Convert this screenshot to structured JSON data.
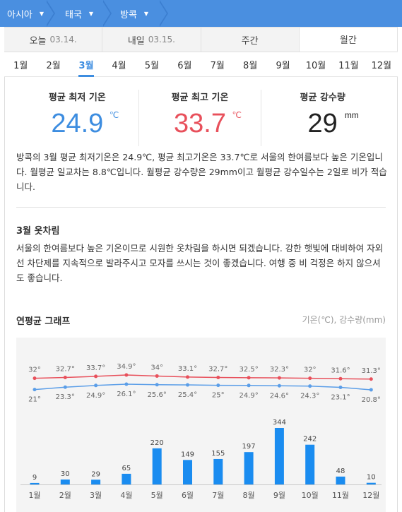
{
  "breadcrumb": [
    {
      "label": "아시아"
    },
    {
      "label": "태국"
    },
    {
      "label": "방콕"
    }
  ],
  "tabs": [
    {
      "label": "오늘",
      "date": "03.14."
    },
    {
      "label": "내일",
      "date": "03.15."
    },
    {
      "label": "주간",
      "date": ""
    },
    {
      "label": "월간",
      "date": ""
    }
  ],
  "active_tab": "월간",
  "months": [
    "1월",
    "2월",
    "3월",
    "4월",
    "5월",
    "6월",
    "7월",
    "8월",
    "9월",
    "10월",
    "11월",
    "12월"
  ],
  "active_month": "3월",
  "stats": {
    "min": {
      "label": "평균 최저 기온",
      "value": "24.9",
      "unit": "℃"
    },
    "max": {
      "label": "평균 최고 기온",
      "value": "33.7",
      "unit": "℃"
    },
    "rain": {
      "label": "평균 강수량",
      "value": "29",
      "unit": "mm"
    }
  },
  "description": "방콕의 3월 평균 최저기온은 24.9℃, 평균 최고기온은 33.7℃로 서울의 한여름보다 높은 기온입니다. 월평균 일교차는 8.8℃입니다. 월평균 강수량은 29mm이고 월평균 강수일수는 2일로 비가 적습니다.",
  "clothing": {
    "title": "3월 옷차림",
    "text": "서울의 한여름보다 높은 기온이므로 시원한 옷차림을 하시면 되겠습니다. 강한 햇빛에 대비하여 자외선 차단제를 지속적으로 발라주시고 모자를 쓰시는 것이 좋겠습니다. 여행 중 비 걱정은 하지 않으셔도 좋습니다."
  },
  "graph": {
    "title": "연평균 그래프",
    "unit_label": "기온(℃), 강수량(mm)"
  },
  "colors": {
    "accent": "#3d8de0",
    "max_line": "#e8505b",
    "min_line": "#5b9ee8",
    "bar": "#1a8cf0"
  },
  "chart_data": {
    "type": "line+bar",
    "categories": [
      "1월",
      "2월",
      "3월",
      "4월",
      "5월",
      "6월",
      "7월",
      "8월",
      "9월",
      "10월",
      "11월",
      "12월"
    ],
    "series": [
      {
        "name": "최고 기온",
        "type": "line",
        "labels": [
          "32°",
          "32.7°",
          "33.7°",
          "34.9°",
          "34°",
          "33.1°",
          "32.7°",
          "32.5°",
          "32.3°",
          "32°",
          "31.6°",
          "31.3°"
        ],
        "values": [
          32,
          32.7,
          33.7,
          34.9,
          34,
          33.1,
          32.7,
          32.5,
          32.3,
          32,
          31.6,
          31.3
        ]
      },
      {
        "name": "최저 기온",
        "type": "line",
        "labels": [
          "21°",
          "23.3°",
          "24.9°",
          "26.1°",
          "25.6°",
          "25.4°",
          "25°",
          "24.9°",
          "24.6°",
          "24.3°",
          "23.1°",
          "20.8°"
        ],
        "values": [
          21,
          23.3,
          24.9,
          26.1,
          25.6,
          25.4,
          25,
          24.9,
          24.6,
          24.3,
          23.1,
          20.8
        ]
      },
      {
        "name": "강수량",
        "type": "bar",
        "values": [
          9,
          30,
          29,
          65,
          220,
          149,
          155,
          197,
          344,
          242,
          48,
          10
        ]
      }
    ]
  }
}
